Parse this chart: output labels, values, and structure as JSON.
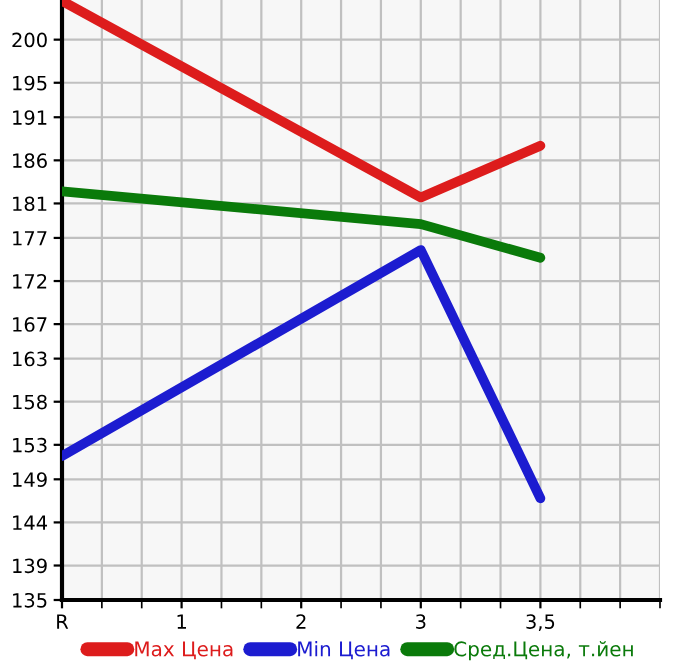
{
  "chart_data": {
    "type": "line",
    "categories": [
      "R",
      "1",
      "2",
      "3",
      "3,5"
    ],
    "series": [
      {
        "name": "Max Цена",
        "color": "#dd1c1c",
        "x": [
          "R",
          "3",
          "3,5"
        ],
        "values": [
          204.5,
          181.7,
          187.7
        ]
      },
      {
        "name": "Min Цена",
        "color": "#1c1cd0",
        "x": [
          "R",
          "3",
          "3,5"
        ],
        "values": [
          151.7,
          175.6,
          146.8
        ]
      },
      {
        "name": "Сред.Цена, т.йен",
        "color": "#0a7a0a",
        "x": [
          "R",
          "3",
          "3,5"
        ],
        "values": [
          182.4,
          178.6,
          174.7
        ]
      }
    ],
    "ylim": [
      135,
      204.6
    ],
    "yticks": [
      135,
      139,
      144,
      149,
      153,
      158,
      163,
      167,
      172,
      177,
      181,
      186,
      191,
      195,
      200
    ],
    "grid": true,
    "legend": "bottom",
    "marker": "none",
    "line_style": "solid"
  }
}
